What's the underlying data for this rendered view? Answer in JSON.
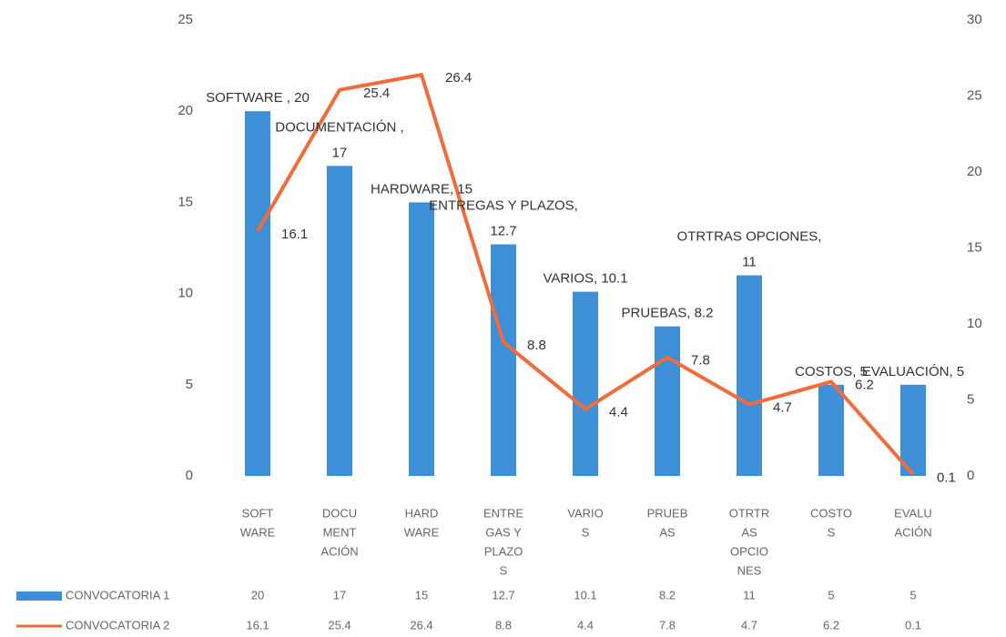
{
  "chart_data": {
    "type": "bar_line",
    "categories": [
      [
        "SOFT",
        "WARE"
      ],
      [
        "DOCU",
        "MENT",
        "ACIÓN"
      ],
      [
        "HARD",
        "WARE"
      ],
      [
        "ENTRE",
        "GAS Y",
        "PLAZO",
        "S"
      ],
      [
        "VARIO",
        "S"
      ],
      [
        "PRUEB",
        "AS"
      ],
      [
        "OTRTR",
        "AS",
        "OPCIO",
        "NES"
      ],
      [
        "COSTO",
        "S"
      ],
      [
        "EVALU",
        "ACIÓN"
      ]
    ],
    "series": [
      {
        "name": "CONVOCATORIA 1",
        "color": "#3d8fd8",
        "type": "bar",
        "values": [
          20,
          17,
          15,
          12.7,
          10.1,
          8.2,
          11,
          5,
          5
        ],
        "value_labels": [
          [
            "SOFTWARE , 20"
          ],
          [
            "DOCUMENTACIÓN ,",
            "17"
          ],
          [
            "HARDWARE, 15"
          ],
          [
            "ENTREGAS Y PLAZOS,",
            "12.7"
          ],
          [
            "VARIOS, 10.1"
          ],
          [
            "PRUEBAS, 8.2"
          ],
          [
            "OTRTRAS OPCIONES,",
            "11"
          ],
          [
            "COSTOS, 5"
          ],
          [
            "EVALUACIÓN, 5"
          ]
        ]
      },
      {
        "name": "CONVOCATORIA 2",
        "color": "#f26b3a",
        "type": "line",
        "axis": "y2",
        "values": [
          16.1,
          25.4,
          26.4,
          8.8,
          4.4,
          7.8,
          4.7,
          6.2,
          0.1
        ]
      }
    ],
    "ylim": [
      0,
      25
    ],
    "yticks": [
      0,
      5,
      10,
      15,
      20,
      25
    ],
    "y2lim": [
      0,
      30
    ],
    "y2ticks": [
      0,
      5,
      10,
      15,
      20,
      25,
      30
    ],
    "data_table": true
  }
}
